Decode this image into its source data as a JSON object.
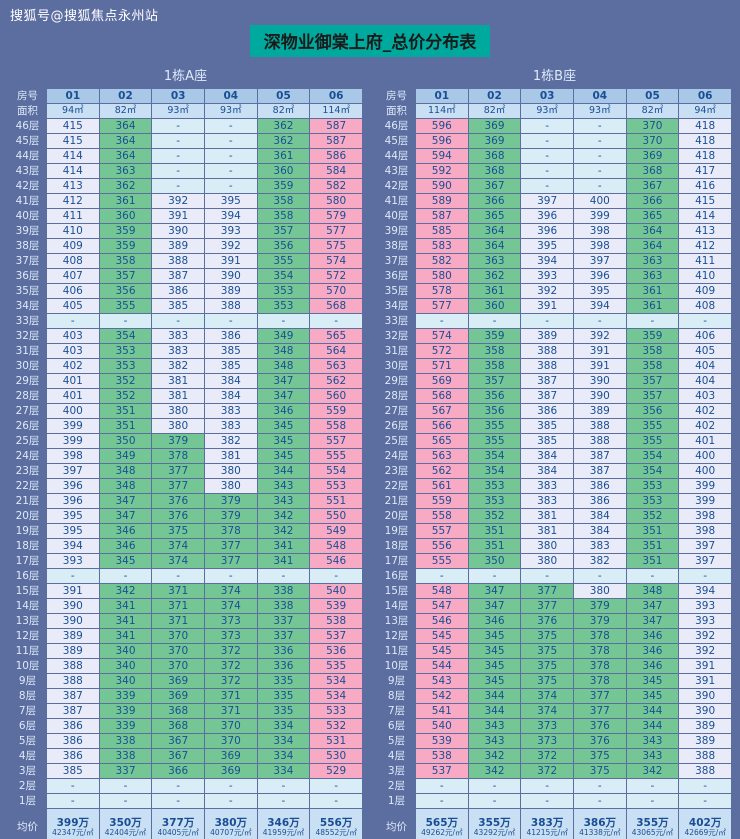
{
  "page": {
    "watermark": "搜狐号@搜狐焦点永州站",
    "title": "深物业御棠上府_总价分布表"
  },
  "colors": {
    "background": "#5c6da0",
    "title_highlight": "#00a99d",
    "title_text": "#1a1a1a",
    "watermark_text": "#ffffff",
    "header_bg": "#a9c8e8",
    "subheader_bg": "#c9dff3",
    "cell_text": "#1a4e94",
    "label_text": "#ddeafa",
    "cell_light": "#e9ecf8",
    "cell_green": "#74c795",
    "cell_pink": "#f8a9c4",
    "cell_dash": "#d9edf6"
  },
  "legend": {
    "pink_means": "total price >= 500万",
    "green_means": "total price < 380万",
    "light_means": "total price 380-499万",
    "dash_means": "no unit / not for sale"
  },
  "chart_data": [
    {
      "type": "table",
      "title": "1栋A座",
      "columns": [
        "房号",
        "01",
        "02",
        "03",
        "04",
        "05",
        "06"
      ],
      "area_row": [
        "面积",
        "94㎡",
        "82㎡",
        "93㎡",
        "93㎡",
        "82㎡",
        "114㎡"
      ],
      "unit_note": "values are total price in 万 (10k CNY)",
      "floors": [
        "46层",
        "45层",
        "44层",
        "43层",
        "42层",
        "41层",
        "40层",
        "39层",
        "38层",
        "37层",
        "36层",
        "35层",
        "34层",
        "33层",
        "32层",
        "31层",
        "30层",
        "29层",
        "28层",
        "27层",
        "26层",
        "25层",
        "24层",
        "23层",
        "22层",
        "21层",
        "20层",
        "19层",
        "18层",
        "17层",
        "16层",
        "15层",
        "14层",
        "13层",
        "12层",
        "11层",
        "10层",
        "9层",
        "8层",
        "7层",
        "6层",
        "5层",
        "4层",
        "3层",
        "2层",
        "1层"
      ],
      "values": [
        [
          "415",
          "364",
          "-",
          "-",
          "362",
          "587"
        ],
        [
          "415",
          "364",
          "-",
          "-",
          "362",
          "587"
        ],
        [
          "414",
          "364",
          "-",
          "-",
          "361",
          "586"
        ],
        [
          "414",
          "363",
          "-",
          "-",
          "360",
          "584"
        ],
        [
          "413",
          "362",
          "-",
          "-",
          "359",
          "582"
        ],
        [
          "412",
          "361",
          "392",
          "395",
          "358",
          "580"
        ],
        [
          "411",
          "360",
          "391",
          "394",
          "358",
          "579"
        ],
        [
          "410",
          "359",
          "390",
          "393",
          "357",
          "577"
        ],
        [
          "409",
          "359",
          "389",
          "392",
          "356",
          "575"
        ],
        [
          "408",
          "358",
          "388",
          "391",
          "355",
          "574"
        ],
        [
          "407",
          "357",
          "387",
          "390",
          "354",
          "572"
        ],
        [
          "406",
          "356",
          "386",
          "389",
          "353",
          "570"
        ],
        [
          "405",
          "355",
          "385",
          "388",
          "353",
          "568"
        ],
        [
          "-",
          "-",
          "-",
          "-",
          "-",
          "-"
        ],
        [
          "403",
          "354",
          "383",
          "386",
          "349",
          "565"
        ],
        [
          "403",
          "353",
          "383",
          "385",
          "348",
          "564"
        ],
        [
          "402",
          "353",
          "382",
          "385",
          "348",
          "563"
        ],
        [
          "401",
          "352",
          "381",
          "384",
          "347",
          "562"
        ],
        [
          "401",
          "352",
          "381",
          "384",
          "347",
          "560"
        ],
        [
          "400",
          "351",
          "380",
          "383",
          "346",
          "559"
        ],
        [
          "399",
          "351",
          "380",
          "383",
          "345",
          "558"
        ],
        [
          "399",
          "350",
          "379",
          "382",
          "345",
          "557"
        ],
        [
          "398",
          "349",
          "378",
          "381",
          "345",
          "555"
        ],
        [
          "397",
          "348",
          "377",
          "380",
          "344",
          "554"
        ],
        [
          "396",
          "348",
          "377",
          "380",
          "343",
          "553"
        ],
        [
          "396",
          "347",
          "376",
          "379",
          "343",
          "551"
        ],
        [
          "395",
          "347",
          "376",
          "379",
          "342",
          "550"
        ],
        [
          "395",
          "346",
          "375",
          "378",
          "342",
          "549"
        ],
        [
          "394",
          "346",
          "374",
          "377",
          "341",
          "548"
        ],
        [
          "393",
          "345",
          "374",
          "377",
          "341",
          "546"
        ],
        [
          "-",
          "-",
          "-",
          "-",
          "-",
          "-"
        ],
        [
          "391",
          "342",
          "371",
          "374",
          "338",
          "540"
        ],
        [
          "390",
          "341",
          "371",
          "374",
          "338",
          "539"
        ],
        [
          "390",
          "341",
          "371",
          "373",
          "337",
          "538"
        ],
        [
          "389",
          "341",
          "370",
          "373",
          "337",
          "537"
        ],
        [
          "389",
          "340",
          "370",
          "372",
          "336",
          "536"
        ],
        [
          "388",
          "340",
          "370",
          "372",
          "336",
          "535"
        ],
        [
          "388",
          "340",
          "369",
          "372",
          "335",
          "534"
        ],
        [
          "387",
          "339",
          "369",
          "371",
          "335",
          "534"
        ],
        [
          "387",
          "339",
          "368",
          "371",
          "335",
          "533"
        ],
        [
          "386",
          "339",
          "368",
          "370",
          "334",
          "532"
        ],
        [
          "386",
          "338",
          "367",
          "370",
          "334",
          "531"
        ],
        [
          "386",
          "338",
          "367",
          "369",
          "334",
          "530"
        ],
        [
          "385",
          "337",
          "366",
          "369",
          "334",
          "529"
        ],
        [
          "-",
          "-",
          "-",
          "-",
          "-",
          "-"
        ],
        [
          "-",
          "-",
          "-",
          "-",
          "-",
          "-"
        ]
      ],
      "avg_label": "均价",
      "avg": [
        {
          "total": "399万",
          "per_sqm": "42347元/㎡"
        },
        {
          "total": "350万",
          "per_sqm": "42404元/㎡"
        },
        {
          "total": "377万",
          "per_sqm": "40405元/㎡"
        },
        {
          "total": "380万",
          "per_sqm": "40707元/㎡"
        },
        {
          "total": "346万",
          "per_sqm": "41959元/㎡"
        },
        {
          "total": "556万",
          "per_sqm": "48552元/㎡"
        }
      ]
    },
    {
      "type": "table",
      "title": "1栋B座",
      "columns": [
        "房号",
        "01",
        "02",
        "03",
        "04",
        "05",
        "06"
      ],
      "area_row": [
        "面积",
        "114㎡",
        "82㎡",
        "93㎡",
        "93㎡",
        "82㎡",
        "94㎡"
      ],
      "unit_note": "values are total price in 万 (10k CNY)",
      "floors": [
        "46层",
        "45层",
        "44层",
        "43层",
        "42层",
        "41层",
        "40层",
        "39层",
        "38层",
        "37层",
        "36层",
        "35层",
        "34层",
        "33层",
        "32层",
        "31层",
        "30层",
        "29层",
        "28层",
        "27层",
        "26层",
        "25层",
        "24层",
        "23层",
        "22层",
        "21层",
        "20层",
        "19层",
        "18层",
        "17层",
        "16层",
        "15层",
        "14层",
        "13层",
        "12层",
        "11层",
        "10层",
        "9层",
        "8层",
        "7层",
        "6层",
        "5层",
        "4层",
        "3层",
        "2层",
        "1层"
      ],
      "values": [
        [
          "596",
          "369",
          "-",
          "-",
          "370",
          "418"
        ],
        [
          "596",
          "369",
          "-",
          "-",
          "370",
          "418"
        ],
        [
          "594",
          "368",
          "-",
          "-",
          "369",
          "418"
        ],
        [
          "592",
          "368",
          "-",
          "-",
          "368",
          "417"
        ],
        [
          "590",
          "367",
          "-",
          "-",
          "367",
          "416"
        ],
        [
          "589",
          "366",
          "397",
          "400",
          "366",
          "415"
        ],
        [
          "587",
          "365",
          "396",
          "399",
          "365",
          "414"
        ],
        [
          "585",
          "364",
          "396",
          "398",
          "364",
          "413"
        ],
        [
          "583",
          "364",
          "395",
          "398",
          "364",
          "412"
        ],
        [
          "582",
          "363",
          "394",
          "397",
          "363",
          "411"
        ],
        [
          "580",
          "362",
          "393",
          "396",
          "363",
          "410"
        ],
        [
          "578",
          "361",
          "392",
          "395",
          "361",
          "409"
        ],
        [
          "577",
          "360",
          "391",
          "394",
          "361",
          "408"
        ],
        [
          "-",
          "-",
          "-",
          "-",
          "-",
          "-"
        ],
        [
          "574",
          "359",
          "389",
          "392",
          "359",
          "406"
        ],
        [
          "572",
          "358",
          "388",
          "391",
          "358",
          "405"
        ],
        [
          "571",
          "358",
          "388",
          "391",
          "358",
          "404"
        ],
        [
          "569",
          "357",
          "387",
          "390",
          "357",
          "404"
        ],
        [
          "568",
          "356",
          "387",
          "390",
          "357",
          "403"
        ],
        [
          "567",
          "356",
          "386",
          "389",
          "356",
          "402"
        ],
        [
          "566",
          "355",
          "385",
          "388",
          "355",
          "402"
        ],
        [
          "565",
          "355",
          "385",
          "388",
          "355",
          "401"
        ],
        [
          "563",
          "354",
          "384",
          "387",
          "354",
          "400"
        ],
        [
          "562",
          "354",
          "384",
          "387",
          "354",
          "400"
        ],
        [
          "561",
          "353",
          "383",
          "386",
          "353",
          "399"
        ],
        [
          "559",
          "353",
          "383",
          "386",
          "353",
          "399"
        ],
        [
          "558",
          "352",
          "381",
          "384",
          "352",
          "398"
        ],
        [
          "557",
          "351",
          "381",
          "384",
          "351",
          "398"
        ],
        [
          "556",
          "351",
          "380",
          "383",
          "351",
          "397"
        ],
        [
          "555",
          "350",
          "380",
          "382",
          "351",
          "397"
        ],
        [
          "-",
          "-",
          "-",
          "-",
          "-",
          "-"
        ],
        [
          "548",
          "347",
          "377",
          "380",
          "348",
          "394"
        ],
        [
          "547",
          "347",
          "377",
          "379",
          "347",
          "393"
        ],
        [
          "546",
          "346",
          "376",
          "379",
          "347",
          "393"
        ],
        [
          "545",
          "345",
          "375",
          "378",
          "346",
          "392"
        ],
        [
          "545",
          "345",
          "375",
          "378",
          "346",
          "392"
        ],
        [
          "544",
          "345",
          "375",
          "378",
          "346",
          "391"
        ],
        [
          "543",
          "345",
          "375",
          "378",
          "345",
          "391"
        ],
        [
          "542",
          "344",
          "374",
          "377",
          "345",
          "390"
        ],
        [
          "541",
          "344",
          "374",
          "377",
          "344",
          "390"
        ],
        [
          "540",
          "343",
          "373",
          "376",
          "344",
          "389"
        ],
        [
          "539",
          "343",
          "373",
          "376",
          "343",
          "389"
        ],
        [
          "538",
          "342",
          "372",
          "375",
          "343",
          "388"
        ],
        [
          "537",
          "342",
          "372",
          "375",
          "342",
          "388"
        ],
        [
          "-",
          "-",
          "-",
          "-",
          "-",
          "-"
        ],
        [
          "-",
          "-",
          "-",
          "-",
          "-",
          "-"
        ]
      ],
      "avg_label": "均价",
      "avg": [
        {
          "total": "565万",
          "per_sqm": "49262元/㎡"
        },
        {
          "total": "355万",
          "per_sqm": "43292元/㎡"
        },
        {
          "total": "383万",
          "per_sqm": "41215元/㎡"
        },
        {
          "total": "386万",
          "per_sqm": "41338元/㎡"
        },
        {
          "total": "355万",
          "per_sqm": "43065元/㎡"
        },
        {
          "total": "402万",
          "per_sqm": "42669元/㎡"
        }
      ]
    }
  ]
}
